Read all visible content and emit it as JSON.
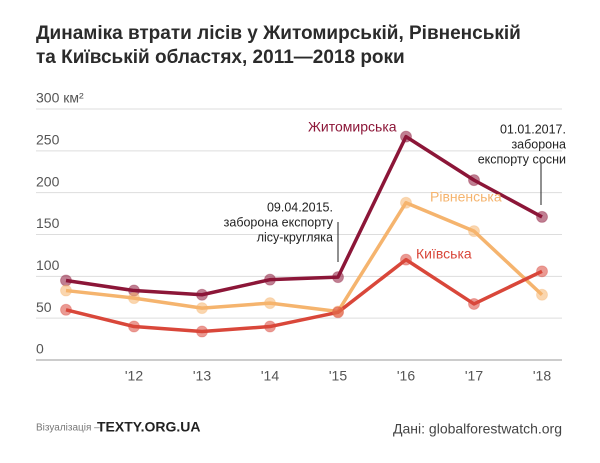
{
  "chart_data": {
    "type": "line",
    "title": [
      "Динаміка втрати лісів у Житомирській, Рівненській",
      "та Київській областях, 2011—2018 роки"
    ],
    "categories": [
      null,
      "'12",
      "'13",
      "'14",
      "'15",
      "'16",
      "'17",
      "'18"
    ],
    "series": [
      {
        "name": "Житомирська",
        "color": "#8c1638",
        "values": [
          95,
          83,
          78,
          96,
          99,
          267,
          215,
          171
        ]
      },
      {
        "name": "Рівненська",
        "color": "#f5b46e",
        "values": [
          83,
          74,
          62,
          68,
          58,
          188,
          154,
          78
        ]
      },
      {
        "name": "Київська",
        "color": "#d9473a",
        "values": [
          60,
          40,
          34,
          40,
          57,
          120,
          67,
          106
        ]
      }
    ],
    "ylim": [
      0,
      300
    ],
    "yticks": [
      0,
      50,
      100,
      150,
      200,
      250,
      {
        "value": 300,
        "label": "300 км²"
      }
    ],
    "grid": true,
    "annotations": [
      {
        "lines": [
          "09.04.2015.",
          "заборона експорту",
          "лісу-кругляка"
        ]
      },
      {
        "lines": [
          "01.01.2017.",
          "заборона",
          "експорту сосни"
        ]
      }
    ],
    "footer": {
      "credit_label": "Візуалізація –",
      "credit": "TEXTY.ORG.UA",
      "source": "Дані: globalforestwatch.org"
    }
  }
}
